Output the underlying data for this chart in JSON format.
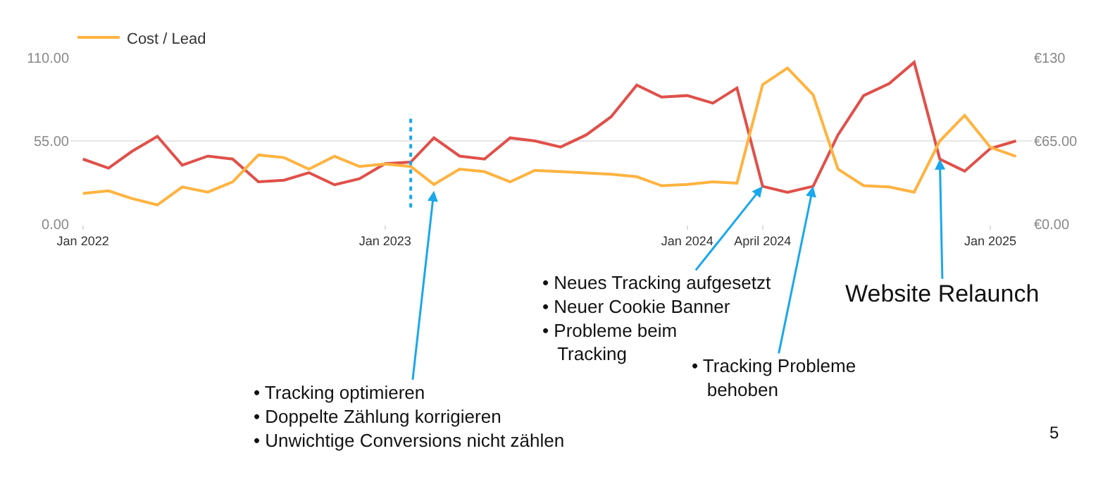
{
  "chart_data": {
    "type": "line",
    "x": [
      "2022-01",
      "2022-02",
      "2022-03",
      "2022-04",
      "2022-05",
      "2022-06",
      "2022-07",
      "2022-08",
      "2022-09",
      "2022-10",
      "2022-11",
      "2022-12",
      "2023-01",
      "2023-02",
      "2023-03",
      "2023-04",
      "2023-05",
      "2023-06",
      "2023-07",
      "2023-08",
      "2023-09",
      "2023-10",
      "2023-11",
      "2023-12",
      "2024-01",
      "2024-02",
      "2024-03",
      "2024-04",
      "2024-05",
      "2024-06",
      "2024-07",
      "2024-08",
      "2024-09",
      "2024-10",
      "2024-11",
      "2024-12",
      "2025-01",
      "2025-02"
    ],
    "series": [
      {
        "color": "#e0504a",
        "values": [
          43,
          37,
          48,
          58,
          39,
          45,
          43,
          28,
          29,
          34,
          26,
          30,
          40,
          41,
          57,
          45,
          43,
          57,
          55,
          51,
          59,
          71,
          92,
          84,
          85,
          80,
          90,
          25,
          21,
          25,
          59,
          85,
          93,
          107,
          43,
          35,
          50,
          55
        ]
      },
      {
        "name": "Cost / Lead",
        "color": "#ffb340",
        "axis": "y2",
        "values": [
          24,
          26,
          20,
          15,
          29,
          25,
          33,
          54,
          52,
          43,
          53,
          45,
          47,
          45,
          31,
          43,
          41,
          33,
          42,
          41,
          40,
          39,
          37,
          30,
          31,
          33,
          32,
          109,
          122,
          101,
          43,
          30,
          29,
          25,
          65,
          85,
          60,
          53
        ]
      }
    ],
    "xlim": [
      "2021-12-17",
      "2025-02-21"
    ],
    "xticks": [
      {
        "value": "2022-01",
        "label": "Jan 2022"
      },
      {
        "value": "2023-01",
        "label": "Jan 2023"
      },
      {
        "value": "2024-01",
        "label": "Jan 2024"
      },
      {
        "value": "2024-04",
        "label": "April 2024"
      },
      {
        "value": "2025-01",
        "label": "Jan 2025"
      }
    ],
    "ylim": [
      0,
      110
    ],
    "yticks": [
      {
        "value": 0,
        "label": "0.00"
      },
      {
        "value": 55,
        "label": "55.00"
      },
      {
        "value": 110,
        "label": "110.00"
      }
    ],
    "y2lim": [
      0,
      130
    ],
    "y2ticks": [
      {
        "value": 0,
        "label": "€0.00"
      },
      {
        "value": 65,
        "label": "€65.00"
      },
      {
        "value": 130,
        "label": "€130"
      }
    ],
    "grid": "y",
    "legend": "top left",
    "ref_lines": [
      {
        "axis": "x",
        "value": "2023-02",
        "color": "#1aa7ec",
        "line_style": "dotted"
      }
    ],
    "annotations": [
      {
        "text": "• Tracking optimieren\n• Doppelte Zählung korrigieren\n• Unwichtige Conversions nicht zählen",
        "x": "2023-03",
        "y": 22
      },
      {
        "text": "• Neues Tracking aufgesetzt\n• Neuer Cookie Banner\n• Probleme beim\n   Tracking",
        "x": "2024-04",
        "y": 25
      },
      {
        "text": "• Tracking Probleme\n   behoben",
        "x": "2024-06",
        "y": 25
      },
      {
        "text": "Website Relaunch",
        "x": "2024-11",
        "y": 43
      },
      "5"
    ]
  }
}
